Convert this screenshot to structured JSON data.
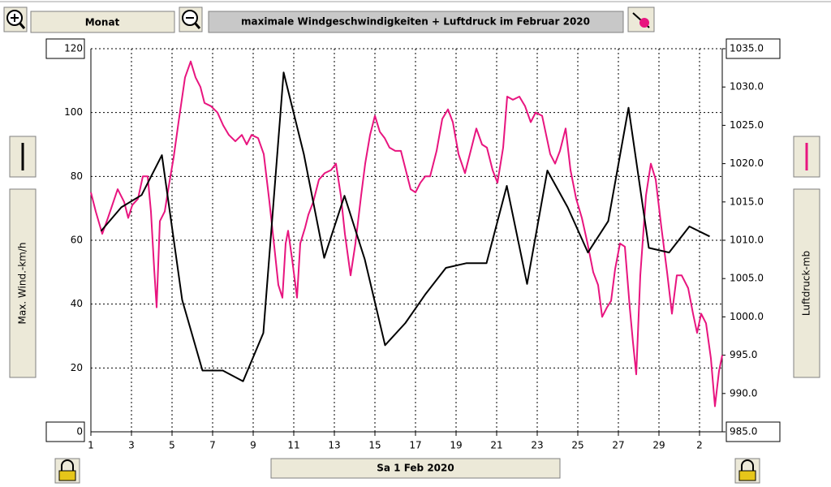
{
  "toolbar": {
    "period": "Monat"
  },
  "footer": {
    "date": "Sa 1 Feb 2020"
  },
  "chart_data": {
    "type": "line",
    "title": "maximale Windgeschwindigkeiten + Luftdruck im Februar 2020",
    "y_label": "Max. Wind.-km/h",
    "y2_label": "Luftdruck-mb",
    "grid": true,
    "xlim": [
      1,
      32.12
    ],
    "xticks": [
      1,
      3,
      5,
      7,
      9,
      11,
      13,
      15,
      17,
      19,
      21,
      23,
      25,
      27,
      29,
      {
        "value": 31,
        "label": "2"
      }
    ],
    "ylim": [
      0,
      120
    ],
    "yticks": [
      0,
      20,
      40,
      60,
      80,
      100,
      120
    ],
    "y2lim": [
      985,
      1035
    ],
    "y2ticks": [
      {
        "value": 985,
        "label": "985.0"
      },
      {
        "value": 990,
        "label": "990.0"
      },
      {
        "value": 995,
        "label": "995.0"
      },
      {
        "value": 1000,
        "label": "1000.0"
      },
      {
        "value": 1005,
        "label": "1005.0"
      },
      {
        "value": 1010,
        "label": "1010.0"
      },
      {
        "value": 1015,
        "label": "1015.0"
      },
      {
        "value": 1020,
        "label": "1020.0"
      },
      {
        "value": 1025,
        "label": "1025.0"
      },
      {
        "value": 1030,
        "label": "1030.0"
      },
      {
        "value": 1035,
        "label": "1035.0"
      }
    ],
    "series": [
      {
        "color": "#e8157f",
        "x": [
          1.0,
          1.24,
          1.56,
          1.84,
          2.32,
          2.64,
          2.84,
          3.04,
          3.32,
          3.56,
          3.8,
          3.96,
          4.12,
          4.24,
          4.4,
          4.64,
          4.84,
          5.08,
          5.32,
          5.64,
          5.92,
          6.16,
          6.4,
          6.6,
          6.92,
          7.24,
          7.52,
          7.8,
          8.12,
          8.44,
          8.68,
          8.92,
          9.24,
          9.52,
          9.8,
          10.04,
          10.24,
          10.44,
          10.6,
          10.72,
          10.92,
          11.16,
          11.32,
          11.56,
          11.72,
          11.96,
          12.24,
          12.52,
          12.84,
          13.08,
          13.32,
          13.52,
          13.8,
          14.04,
          14.32,
          14.52,
          14.76,
          15.0,
          15.24,
          15.48,
          15.72,
          16.0,
          16.28,
          16.52,
          16.76,
          17.0,
          17.24,
          17.48,
          17.72,
          18.04,
          18.32,
          18.6,
          18.84,
          19.12,
          19.44,
          19.72,
          20.0,
          20.28,
          20.52,
          20.8,
          21.04,
          21.32,
          21.52,
          21.8,
          22.12,
          22.4,
          22.68,
          22.92,
          23.24,
          23.44,
          23.64,
          23.88,
          24.12,
          24.4,
          24.64,
          24.92,
          25.2,
          25.48,
          25.76,
          26.0,
          26.2,
          26.44,
          26.64,
          26.84,
          27.08,
          27.32,
          27.56,
          27.72,
          27.88,
          28.08,
          28.36,
          28.6,
          28.84,
          29.12,
          29.4,
          29.64,
          29.88,
          30.12,
          30.44,
          30.68,
          30.88,
          31.08,
          31.32,
          31.56,
          31.76,
          31.96,
          32.12
        ],
        "values": [
          75,
          69,
          62,
          67,
          76,
          72,
          67,
          71,
          73,
          80,
          80,
          69,
          51,
          39,
          66,
          69,
          77,
          86,
          97,
          111,
          116,
          111,
          108,
          103,
          102,
          100,
          96,
          93,
          91,
          93,
          90,
          93,
          92,
          87,
          72,
          58,
          46,
          42,
          59,
          63,
          54,
          42,
          59,
          64,
          68,
          72,
          79,
          81,
          82,
          84,
          74,
          62,
          49,
          59,
          74,
          84,
          93,
          99,
          94,
          92,
          89,
          88,
          88,
          82,
          76,
          75,
          78,
          80,
          80,
          88,
          98,
          101,
          97,
          87,
          81,
          88,
          95,
          90,
          89,
          82,
          78,
          89,
          105,
          104,
          105,
          102,
          97,
          100,
          99,
          93,
          87,
          84,
          88,
          95,
          82,
          73,
          67,
          59,
          50,
          46,
          36,
          39,
          41,
          51,
          59,
          58,
          39,
          28,
          18,
          49,
          74,
          84,
          79,
          64,
          50,
          37,
          49,
          49,
          45,
          37,
          31,
          37,
          34,
          23,
          8,
          19,
          24
        ]
      },
      {
        "color": "#000000",
        "axis": "y2",
        "x": [
          1.5,
          2.5,
          3.5,
          4.5,
          5.5,
          6.5,
          7.5,
          8.5,
          9.5,
          10.5,
          11.5,
          12.5,
          13.5,
          14.5,
          15.5,
          16.5,
          17.5,
          18.5,
          19.5,
          20.5,
          21.5,
          22.5,
          23.5,
          24.5,
          25.5,
          26.5,
          27.5,
          28.5,
          29.5,
          30.5,
          31.5
        ],
        "values": [
          1011.2,
          1014.3,
          1015.9,
          1021.1,
          1002.2,
          993.0,
          993.0,
          991.6,
          997.9,
          1031.9,
          1021.2,
          1007.7,
          1015.8,
          1007.5,
          996.3,
          999.2,
          1003.0,
          1006.4,
          1007.0,
          1007.0,
          1017.1,
          1004.3,
          1019.1,
          1014.3,
          1008.4,
          1012.5,
          1027.3,
          1009.0,
          1008.4,
          1011.8,
          1010.5
        ]
      }
    ]
  }
}
